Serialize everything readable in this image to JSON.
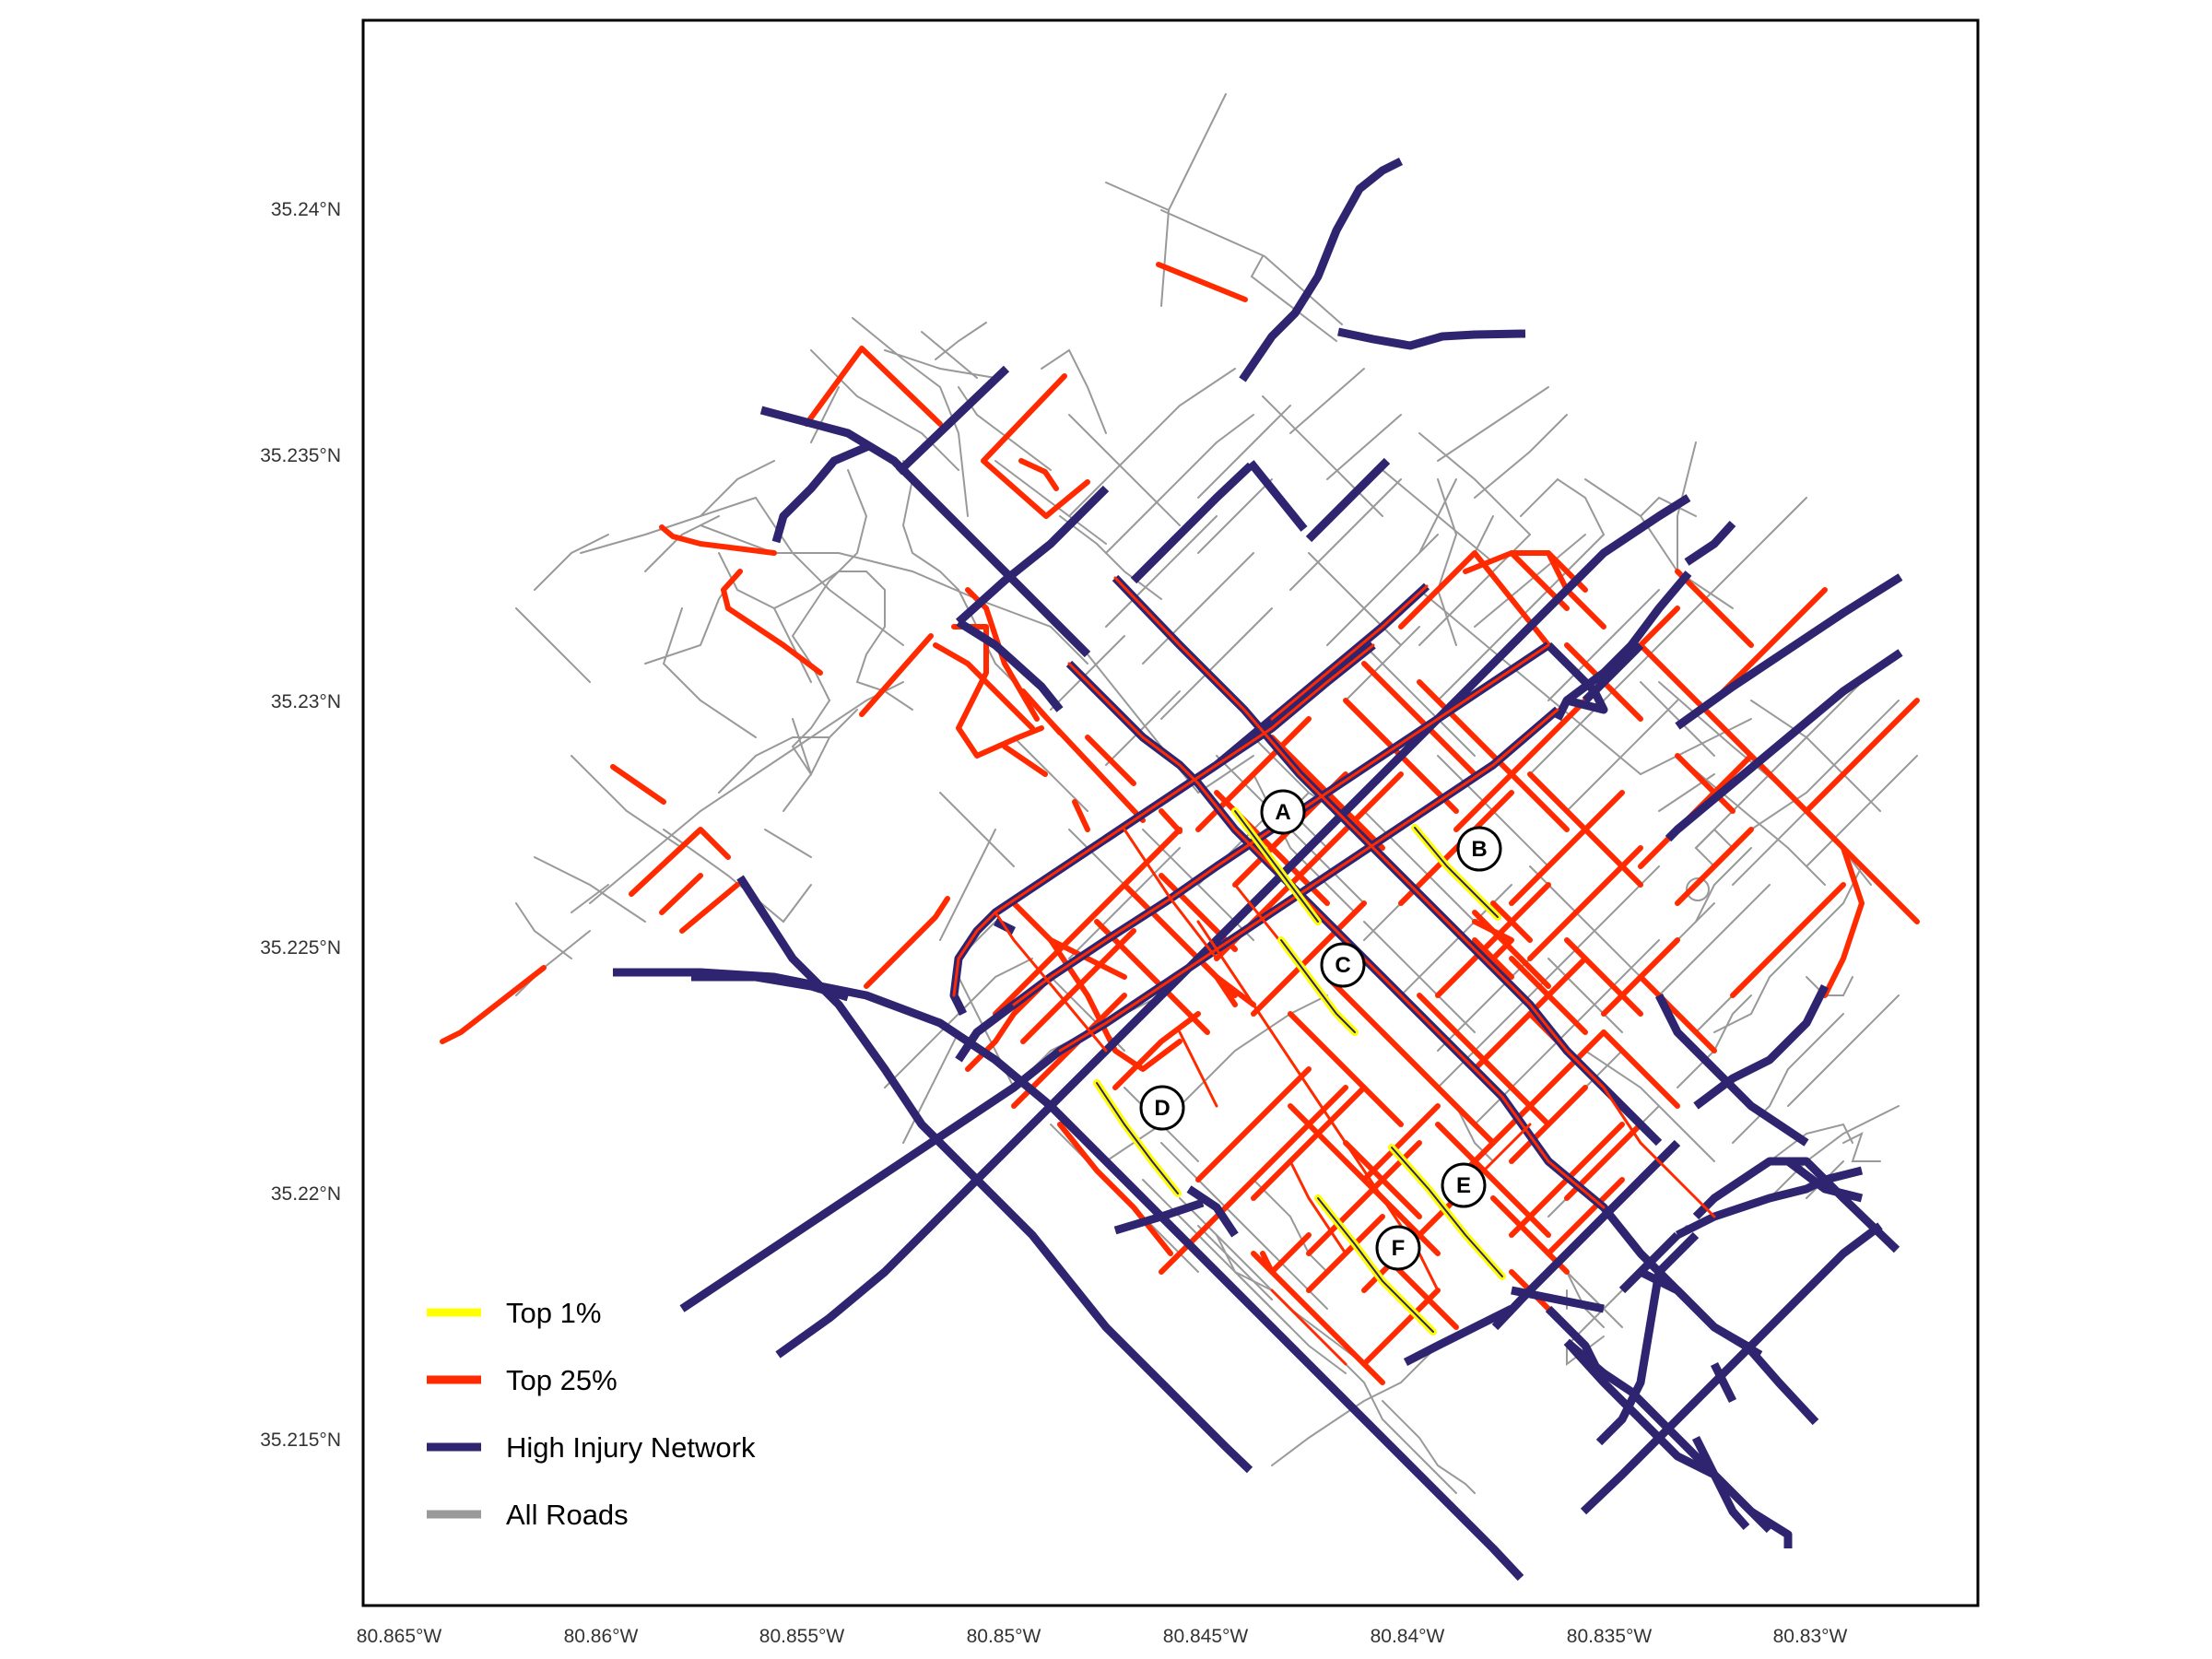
{
  "colors": {
    "top1": "#ffff00",
    "top25": "#ff2a00",
    "hin": "#2e2470",
    "roads": "#999999",
    "frame": "#000000"
  },
  "axes": {
    "lon_ticks": [
      "80.865°W",
      "80.86°W",
      "80.855°W",
      "80.85°W",
      "80.845°W",
      "80.84°W",
      "80.835°W",
      "80.83°W"
    ],
    "lat_ticks": [
      "35.24°N",
      "35.235°N",
      "35.23°N",
      "35.225°N",
      "35.22°N",
      "35.215°N"
    ]
  },
  "legend": {
    "items": [
      {
        "label": "Top 1%",
        "color_key": "top1"
      },
      {
        "label": "Top 25%",
        "color_key": "top25"
      },
      {
        "label": "High Injury Network",
        "color_key": "hin"
      },
      {
        "label": "All Roads",
        "color_key": "roads"
      }
    ]
  },
  "markers": [
    {
      "label": "A"
    },
    {
      "label": "B"
    },
    {
      "label": "C"
    },
    {
      "label": "D"
    },
    {
      "label": "E"
    },
    {
      "label": "F"
    }
  ]
}
